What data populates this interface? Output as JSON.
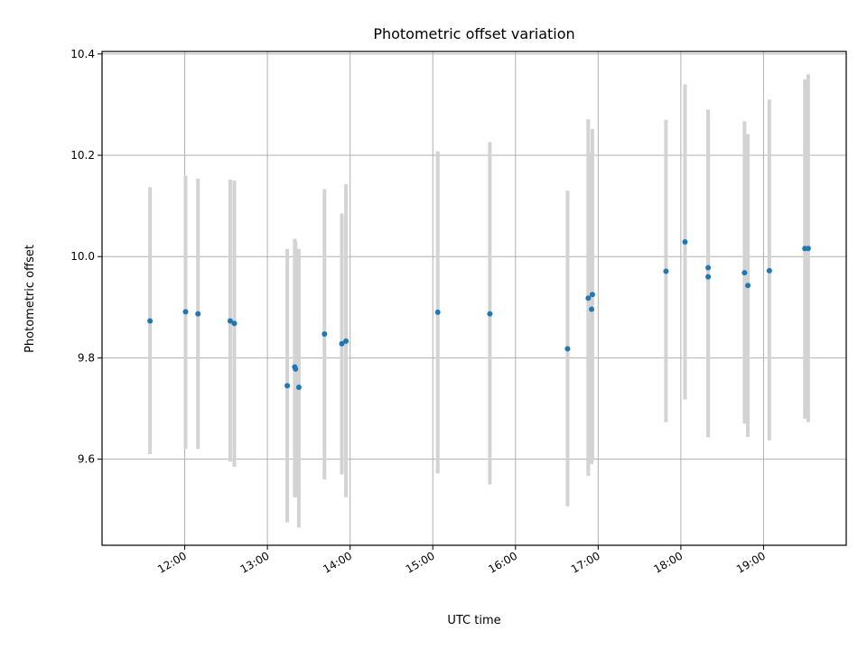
{
  "chart_data": {
    "type": "scatter",
    "title": "Photometric offset variation",
    "xlabel": "UTC time",
    "ylabel": "Photometric offset",
    "x_unit": "hours UTC",
    "xlim": [
      11.0,
      20.0
    ],
    "ylim": [
      9.43,
      10.405
    ],
    "grid": true,
    "x_ticks": [
      {
        "value": 12,
        "label": "12:00"
      },
      {
        "value": 13,
        "label": "13:00"
      },
      {
        "value": 14,
        "label": "14:00"
      },
      {
        "value": 15,
        "label": "15:00"
      },
      {
        "value": 16,
        "label": "16:00"
      },
      {
        "value": 17,
        "label": "17:00"
      },
      {
        "value": 18,
        "label": "18:00"
      },
      {
        "value": 19,
        "label": "19:00"
      }
    ],
    "y_ticks": [
      {
        "value": 9.6,
        "label": "9.6"
      },
      {
        "value": 9.8,
        "label": "9.8"
      },
      {
        "value": 10.0,
        "label": "10.0"
      },
      {
        "value": 10.2,
        "label": "10.2"
      },
      {
        "value": 10.4,
        "label": "10.4"
      }
    ],
    "colors": {
      "point": "#1f77b4",
      "errorbar": "#d3d3d3",
      "grid": "#b0b0b0",
      "axes": "#000000"
    },
    "points": [
      {
        "x": 11.58,
        "y": 9.873,
        "err_low": 9.61,
        "err_high": 10.137
      },
      {
        "x": 12.01,
        "y": 9.891,
        "err_low": 9.62,
        "err_high": 10.16
      },
      {
        "x": 12.16,
        "y": 9.887,
        "err_low": 9.62,
        "err_high": 10.154
      },
      {
        "x": 12.55,
        "y": 9.873,
        "err_low": 9.595,
        "err_high": 10.152
      },
      {
        "x": 12.6,
        "y": 9.868,
        "err_low": 9.585,
        "err_high": 10.15
      },
      {
        "x": 13.24,
        "y": 9.745,
        "err_low": 9.475,
        "err_high": 10.015
      },
      {
        "x": 13.33,
        "y": 9.782,
        "err_low": 9.525,
        "err_high": 10.035
      },
      {
        "x": 13.34,
        "y": 9.778,
        "err_low": 9.525,
        "err_high": 10.03
      },
      {
        "x": 13.38,
        "y": 9.742,
        "err_low": 9.465,
        "err_high": 10.015
      },
      {
        "x": 13.69,
        "y": 9.847,
        "err_low": 9.56,
        "err_high": 10.133
      },
      {
        "x": 13.9,
        "y": 9.828,
        "err_low": 9.57,
        "err_high": 10.085
      },
      {
        "x": 13.95,
        "y": 9.833,
        "err_low": 9.525,
        "err_high": 10.143
      },
      {
        "x": 15.06,
        "y": 9.89,
        "err_low": 9.572,
        "err_high": 10.208
      },
      {
        "x": 15.69,
        "y": 9.887,
        "err_low": 9.55,
        "err_high": 10.226
      },
      {
        "x": 16.63,
        "y": 9.818,
        "err_low": 9.507,
        "err_high": 10.13
      },
      {
        "x": 16.88,
        "y": 9.918,
        "err_low": 9.567,
        "err_high": 10.271
      },
      {
        "x": 16.93,
        "y": 9.925,
        "err_low": 9.598,
        "err_high": 10.252
      },
      {
        "x": 16.92,
        "y": 9.896,
        "err_low": 9.59,
        "err_high": 10.205
      },
      {
        "x": 17.82,
        "y": 9.971,
        "err_low": 9.673,
        "err_high": 10.27
      },
      {
        "x": 18.05,
        "y": 10.029,
        "err_low": 9.718,
        "err_high": 10.34
      },
      {
        "x": 18.33,
        "y": 9.978,
        "err_low": 9.643,
        "err_high": 10.29
      },
      {
        "x": 18.33,
        "y": 9.96,
        "err_low": 9.645,
        "err_high": 10.275
      },
      {
        "x": 18.77,
        "y": 9.968,
        "err_low": 9.67,
        "err_high": 10.267
      },
      {
        "x": 18.81,
        "y": 9.943,
        "err_low": 9.644,
        "err_high": 10.242
      },
      {
        "x": 19.07,
        "y": 9.972,
        "err_low": 9.637,
        "err_high": 10.31
      },
      {
        "x": 19.5,
        "y": 10.016,
        "err_low": 9.68,
        "err_high": 10.35
      },
      {
        "x": 19.54,
        "y": 10.016,
        "err_low": 9.673,
        "err_high": 10.36
      }
    ]
  }
}
